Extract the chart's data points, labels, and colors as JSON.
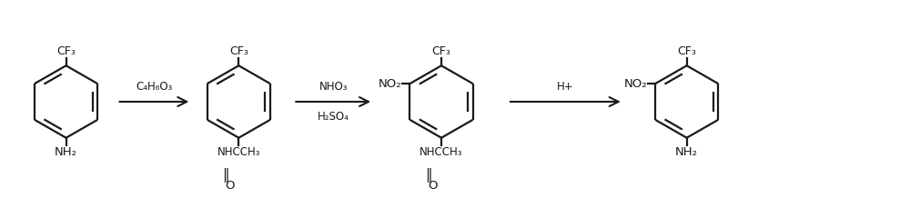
{
  "background_color": "#ffffff",
  "fig_width": 10.0,
  "fig_height": 2.18,
  "dpi": 100,
  "arrow1_label_top": "C₄H₆O₃",
  "arrow2_label_top": "NHO₃",
  "arrow2_label_bot": "H₂SO₄",
  "arrow3_label_top": "H+",
  "line_color": "#1a1a1a",
  "text_color": "#1a1a1a",
  "lw": 1.6
}
